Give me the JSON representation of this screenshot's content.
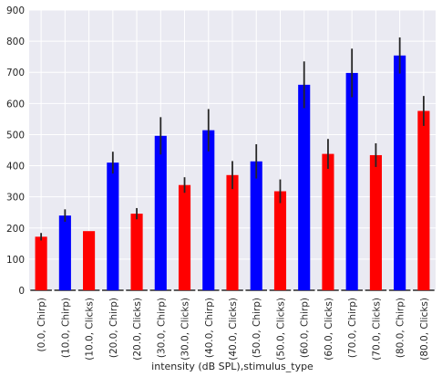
{
  "chart_data": {
    "type": "bar",
    "xlabel": "intensity (dB SPL),stimulus_type",
    "ylabel": "",
    "ylim": [
      0,
      900
    ],
    "yticks": [
      0,
      100,
      200,
      300,
      400,
      500,
      600,
      700,
      800,
      900
    ],
    "grid": true,
    "categories": [
      "(0.0, Chirp)",
      "(10.0, Chirp)",
      "(10.0, Clicks)",
      "(20.0, Chirp)",
      "(20.0, Clicks)",
      "(30.0, Chirp)",
      "(30.0, Clicks)",
      "(40.0, Chirp)",
      "(40.0, Clicks)",
      "(50.0, Chirp)",
      "(50.0, Clicks)",
      "(60.0, Chirp)",
      "(60.0, Clicks)",
      "(70.0, Chirp)",
      "(70.0, Clicks)",
      "(80.0, Chirp)",
      "(80.0, Clicks)"
    ],
    "values": [
      172,
      240,
      190,
      410,
      246,
      496,
      338,
      514,
      370,
      414,
      318,
      660,
      438,
      698,
      434,
      754,
      576
    ],
    "errors": [
      12,
      20,
      0,
      35,
      18,
      60,
      25,
      68,
      45,
      55,
      38,
      75,
      48,
      78,
      38,
      58,
      48
    ],
    "bar_colors": [
      "#ff0000",
      "#0000ff",
      "#ff0000",
      "#0000ff",
      "#ff0000",
      "#0000ff",
      "#ff0000",
      "#0000ff",
      "#ff0000",
      "#0000ff",
      "#ff0000",
      "#0000ff",
      "#ff0000",
      "#0000ff",
      "#ff0000",
      "#0000ff",
      "#ff0000"
    ],
    "background_color": "#eaeaf2",
    "gridline_color": "#ffffff",
    "errorbar_color": "#262626"
  }
}
